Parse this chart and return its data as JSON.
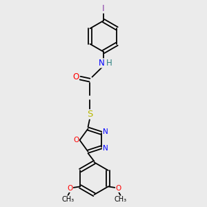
{
  "background_color": "#ebebeb",
  "bond_color": "#000000",
  "atom_colors": {
    "I": "#8b3fa8",
    "N": "#0000ff",
    "H": "#2f8080",
    "O": "#ff0000",
    "S": "#b8b800",
    "C": "#000000"
  },
  "fig_w": 3.0,
  "fig_h": 3.0,
  "dpi": 100,
  "xlim": [
    0,
    10
  ],
  "ylim": [
    0,
    10
  ],
  "font_size": 8.5,
  "font_size_small": 7.0
}
